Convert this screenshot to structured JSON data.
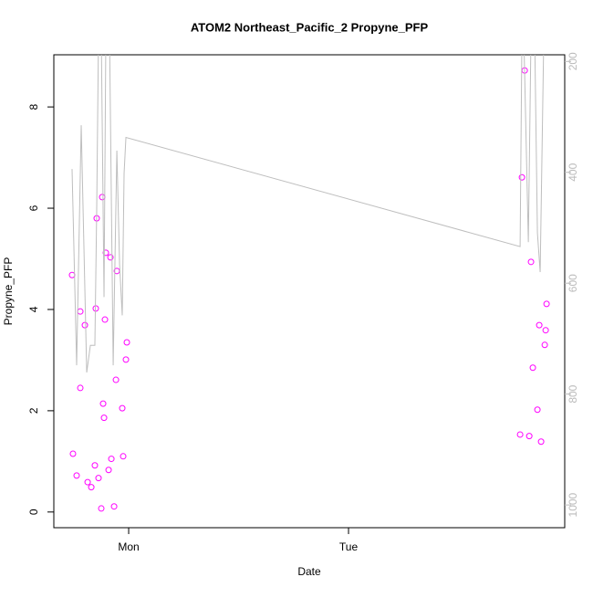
{
  "chart_data": {
    "type": "scatter",
    "title": "ATOM2 Northeast_Pacific_2 Propyne_PFP",
    "xlabel": "Date",
    "ylabel": "Propyne_PFP",
    "x": [
      -6.18,
      -6.08,
      -5.68,
      -5.28,
      -5.28,
      -4.78,
      -4.48,
      -4.08,
      -3.69,
      -3.59,
      -3.49,
      -3.29,
      -2.99,
      -2.89,
      -2.79,
      -2.69,
      -2.59,
      -2.49,
      -2.19,
      -1.99,
      -1.89,
      -1.59,
      -1.39,
      -1.29,
      -0.7,
      -0.6,
      -0.3,
      -0.2,
      42.73,
      42.93,
      43.23,
      43.73,
      43.92,
      44.12,
      44.62,
      44.82,
      45.02,
      45.42,
      45.52,
      45.62
    ],
    "series": [
      {
        "color": "#ff00ff",
        "values": [
          4.68,
          1.15,
          0.72,
          3.96,
          2.45,
          3.69,
          0.59,
          0.49,
          0.92,
          4.02,
          5.8,
          0.67,
          0.07,
          6.22,
          2.14,
          1.86,
          3.8,
          5.12,
          0.83,
          5.03,
          1.05,
          0.11,
          2.61,
          4.76,
          2.05,
          1.1,
          3.01,
          3.35,
          1.53,
          6.61,
          8.72,
          1.5,
          4.94,
          2.85,
          2.02,
          3.69,
          1.39,
          3.3,
          3.59,
          4.11
        ]
      },
      {
        "type": "line",
        "axis": "y2",
        "color": "#bebebe",
        "x": [
          -6.18,
          -5.68,
          -5.18,
          -4.58,
          -4.18,
          -3.69,
          -3.49,
          -3.29,
          -2.99,
          -2.69,
          -2.49,
          -2.09,
          -1.69,
          -1.29,
          -0.99,
          -0.7,
          -0.5,
          -0.3,
          42.73,
          42.93,
          43.13,
          43.63,
          43.92,
          44.32,
          44.62,
          44.92,
          45.32,
          45.62
        ],
        "values": [
          394,
          748,
          315,
          761,
          712,
          712,
          468,
          150,
          150,
          625,
          150,
          150,
          748,
          361,
          567,
          658,
          402,
          337,
          534,
          150,
          150,
          526,
          150,
          150,
          509,
          580,
          150,
          150
        ]
      }
    ],
    "xlim": [
      -8.17,
      47.6
    ],
    "xticks": [
      {
        "value": 0,
        "label": "Mon"
      },
      {
        "value": 24,
        "label": "Tue"
      }
    ],
    "ylim": [
      -0.31,
      9.03
    ],
    "yticks": [
      0,
      2,
      4,
      6,
      8
    ],
    "y2lim": [
      1041,
      188
    ],
    "y2ticks": [
      200,
      400,
      600,
      800,
      1000
    ],
    "y2color": "#bbbbbb"
  }
}
